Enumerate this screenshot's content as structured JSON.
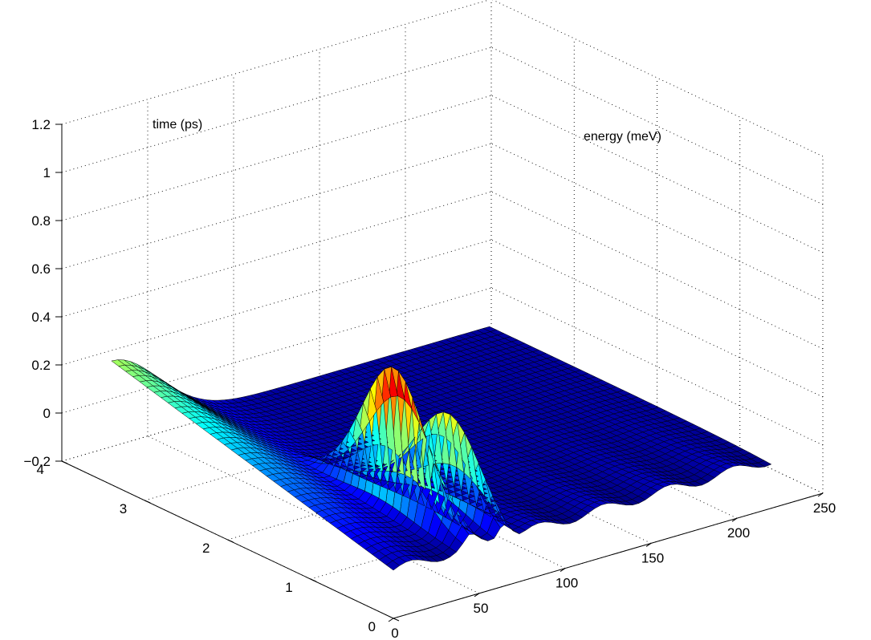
{
  "chart_data": {
    "type": "surface",
    "xlabel": "energy (meV)",
    "ylabel": "time (ps)",
    "zlabel": "",
    "xlim": [
      0,
      250
    ],
    "ylim": [
      0,
      4
    ],
    "zlim": [
      -0.2,
      1.2
    ],
    "xticks": [
      "0",
      "50",
      "100",
      "150",
      "200",
      "250"
    ],
    "yticks": [
      "0",
      "1",
      "2",
      "3",
      "4"
    ],
    "zticks": [
      "−0.2",
      "0",
      "0.2",
      "0.4",
      "0.6",
      "0.8",
      "1",
      "1.2"
    ],
    "grid": true,
    "colormap": "jet",
    "surface_features": [
      {
        "description": "coherent distribution ridge at low energy",
        "energy_meV": 0,
        "time_ps": 3.4,
        "peak_value": 0.37
      },
      {
        "description": "first LO-phonon replica peak",
        "energy_meV": 45,
        "time_ps": 0.9,
        "peak_value": 0.6
      },
      {
        "description": "second peak",
        "energy_meV": 65,
        "time_ps": 0.7,
        "peak_value": 0.42
      }
    ],
    "plateau_value": 0.0
  }
}
